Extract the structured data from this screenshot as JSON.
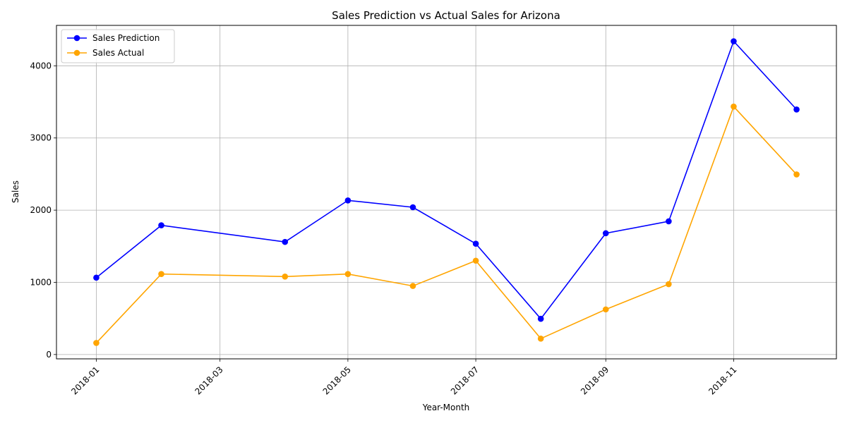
{
  "chart_data": {
    "type": "line",
    "title": "Sales Prediction vs Actual Sales for Arizona",
    "xlabel": "Year-Month",
    "ylabel": "Sales",
    "x": [
      "2018-01-01",
      "2018-02-01",
      "2018-04-01",
      "2018-05-01",
      "2018-06-01",
      "2018-07-01",
      "2018-08-01",
      "2018-09-01",
      "2018-10-01",
      "2018-11-01",
      "2018-12-01"
    ],
    "x_ticks": [
      "2018-01",
      "2018-03",
      "2018-05",
      "2018-07",
      "2018-09",
      "2018-11"
    ],
    "y_ticks": [
      0,
      1000,
      2000,
      3000,
      4000
    ],
    "xlim": [
      "2017-12-13",
      "2018-12-20"
    ],
    "ylim": [
      -60,
      4560
    ],
    "grid": true,
    "legend_position": "top-left",
    "series": [
      {
        "name": "Sales Prediction",
        "color": "#0000ff",
        "values": [
          1065,
          1790,
          1560,
          2135,
          2040,
          1535,
          495,
          1680,
          1845,
          4340,
          3395
        ]
      },
      {
        "name": "Sales Actual",
        "color": "#ffa500",
        "values": [
          160,
          1115,
          1080,
          1115,
          950,
          1300,
          220,
          625,
          975,
          3435,
          2495
        ]
      }
    ]
  }
}
